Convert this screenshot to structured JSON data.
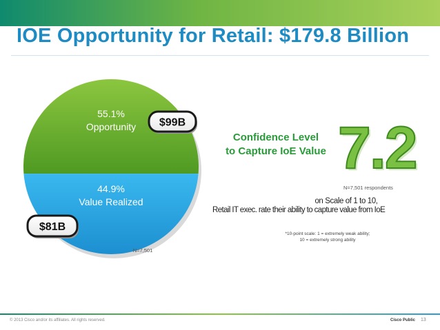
{
  "title": "IOE Opportunity for Retail: $179.8 Billion",
  "chart_data": {
    "type": "pie",
    "slices": [
      {
        "label": "Opportunity",
        "percent": 55.1,
        "pct_text": "55.1%",
        "value_text": "$99B",
        "color": "#62a82f"
      },
      {
        "label": "Value Realized",
        "percent": 44.9,
        "pct_text": "44.9%",
        "value_text": "$81B",
        "color": "#27a6e3"
      }
    ],
    "note": "N=7,501"
  },
  "confidence": {
    "label_line1": "Confidence Level",
    "label_line2": "to Capture IoE Value",
    "score": "7.2",
    "respondents": "N=7,501 respondents",
    "scale_line1": "on Scale of 1 to 10,",
    "scale_line2": "Retail  IT exec. rate their ability to capture value from IoE",
    "footnote_line1": "*10-point scale: 1 = extremely weak ability;",
    "footnote_line2": "10 = extremely strong ability"
  },
  "footer": {
    "copyright": "© 2013 Cisco and/or its affiliates. All rights reserved.",
    "classification": "Cisco Public",
    "page": "13"
  },
  "colors": {
    "title": "#1e8bc3",
    "green": "#62a82f",
    "blue": "#27a6e3",
    "score_green": "#7ac143"
  }
}
